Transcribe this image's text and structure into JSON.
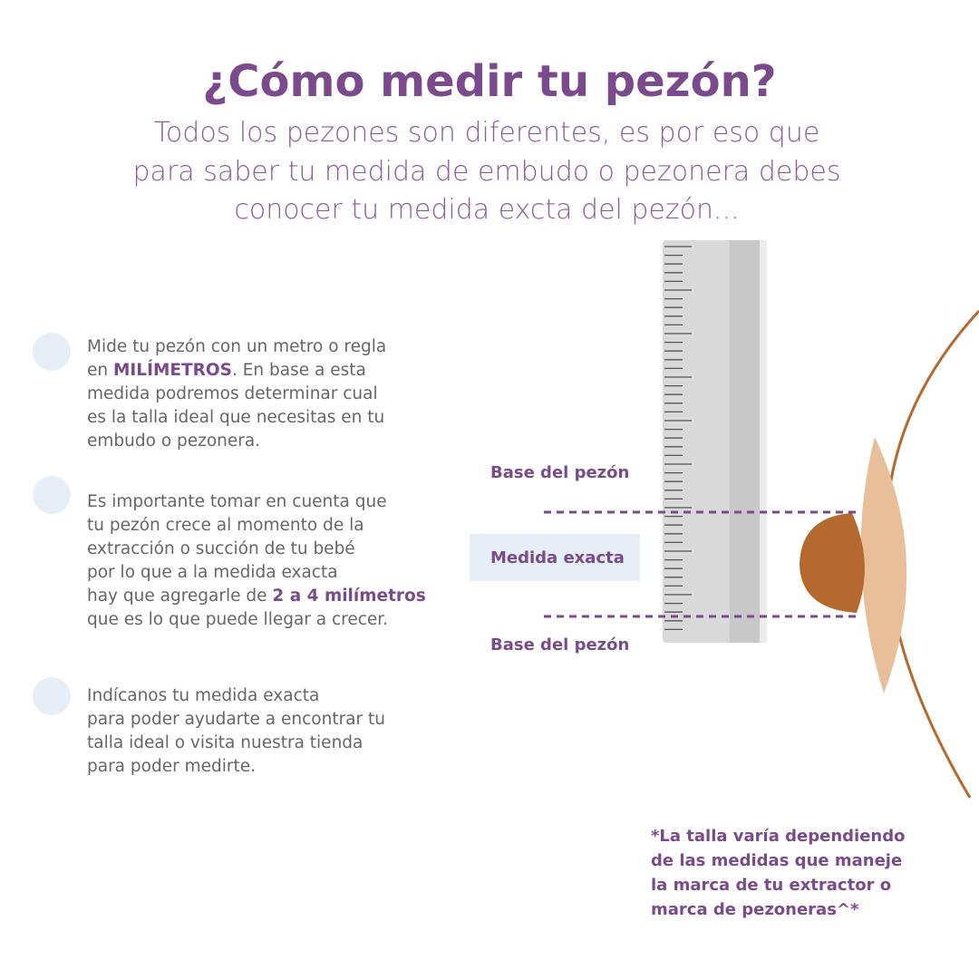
{
  "title": "¿Cómo medir tu pezón?",
  "subtitle": [
    "Todos los pezones son diferentes, es por eso que",
    "para saber tu medida de embudo o pezonera debes",
    "conocer tu medida excta del pezón..."
  ],
  "steps": [
    {
      "lines": [
        [
          {
            "text": "Mide tu pezón con un metro o regla"
          }
        ],
        [
          {
            "text": "en "
          },
          {
            "text": "MILÍMETROS",
            "bold": true
          },
          {
            "text": ". En base a esta"
          }
        ],
        [
          {
            "text": "medida podremos determinar cual"
          }
        ],
        [
          {
            "text": "es la talla ideal que necesitas en tu"
          }
        ],
        [
          {
            "text": "embudo o pezonera."
          }
        ]
      ]
    },
    {
      "lines": [
        [
          {
            "text": "Es importante tomar en cuenta que"
          }
        ],
        [
          {
            "text": "tu pezón crece al momento de la"
          }
        ],
        [
          {
            "text": "extracción o succión de tu bebé"
          }
        ],
        [
          {
            "text": "por lo que a la medida exacta"
          }
        ],
        [
          {
            "text": "hay que agregarle de "
          },
          {
            "text": "2 a 4 milímetros",
            "bold": true
          }
        ],
        [
          {
            "text": "que es lo que puede llegar a crecer."
          }
        ]
      ]
    },
    {
      "lines": [
        [
          {
            "text": "Indícanos tu medida exacta"
          }
        ],
        [
          {
            "text": "para poder ayudarte a encontrar tu"
          }
        ],
        [
          {
            "text": "talla ideal o visita nuestra tienda"
          }
        ],
        [
          {
            "text": "para poder medirte."
          }
        ]
      ]
    }
  ],
  "diagram": {
    "base_top": "Base del pezón",
    "exact": "Medida exacta",
    "base_bottom": "Base del pezón"
  },
  "footnote": [
    "*La talla varía dependiendo",
    "de las medidas que maneje",
    "la marca de tu extractor o",
    "marca de pezoneras^*"
  ]
}
